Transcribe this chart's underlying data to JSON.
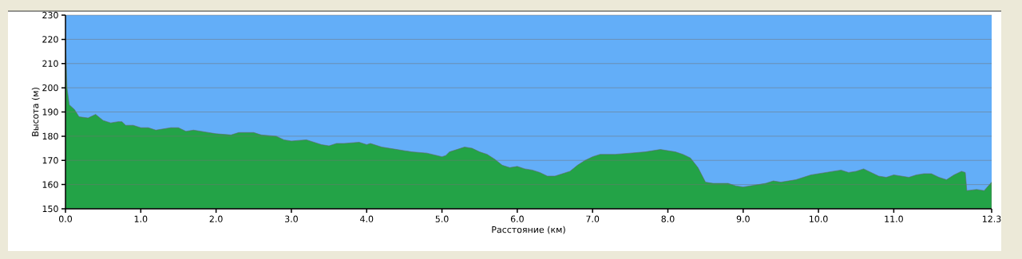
{
  "chart_data": {
    "type": "area",
    "xlabel": "Расстояние   (км)",
    "ylabel": "Высота (м)",
    "color": "#23a347",
    "grid": "y",
    "xlim": [
      0,
      12.3
    ],
    "ylim": [
      150,
      230
    ],
    "xticks": [
      {
        "value": 0,
        "label": "0.0"
      },
      {
        "value": 1,
        "label": "1.0"
      },
      {
        "value": 2,
        "label": "2.0"
      },
      {
        "value": 3,
        "label": "3.0"
      },
      {
        "value": 4,
        "label": "4.0"
      },
      {
        "value": 5,
        "label": "5.0"
      },
      {
        "value": 6,
        "label": "6.0"
      },
      {
        "value": 7,
        "label": "7.0"
      },
      {
        "value": 8,
        "label": "8.0"
      },
      {
        "value": 9,
        "label": "9.0"
      },
      {
        "value": 10,
        "label": "10.0"
      },
      {
        "value": 11,
        "label": "11.0"
      },
      12.3
    ],
    "yticks": [
      150,
      160,
      170,
      180,
      190,
      200,
      210,
      220,
      230
    ],
    "x": [
      0,
      0.02,
      0.05,
      0.12,
      0.18,
      0.3,
      0.4,
      0.5,
      0.6,
      0.7,
      0.75,
      0.8,
      0.9,
      1.0,
      1.1,
      1.2,
      1.4,
      1.5,
      1.6,
      1.7,
      1.8,
      2.0,
      2.2,
      2.3,
      2.5,
      2.6,
      2.8,
      2.9,
      3.0,
      3.2,
      3.3,
      3.4,
      3.5,
      3.6,
      3.7,
      3.9,
      4.0,
      4.05,
      4.2,
      4.4,
      4.6,
      4.8,
      5.0,
      5.05,
      5.1,
      5.3,
      5.4,
      5.5,
      5.6,
      5.7,
      5.8,
      5.9,
      6.0,
      6.1,
      6.2,
      6.3,
      6.4,
      6.5,
      6.6,
      6.7,
      6.8,
      6.9,
      7.0,
      7.1,
      7.2,
      7.3,
      7.5,
      7.7,
      7.8,
      7.9,
      8.0,
      8.1,
      8.2,
      8.3,
      8.4,
      8.5,
      8.6,
      8.8,
      8.9,
      9.0,
      9.2,
      9.3,
      9.4,
      9.5,
      9.6,
      9.7,
      9.8,
      9.9,
      10.0,
      10.2,
      10.3,
      10.4,
      10.5,
      10.6,
      10.7,
      10.8,
      10.9,
      11.0,
      11.1,
      11.2,
      11.3,
      11.4,
      11.5,
      11.6,
      11.7,
      11.8,
      11.9,
      11.95,
      11.97,
      12.1,
      12.2,
      12.3
    ],
    "values": [
      220,
      200,
      193,
      191,
      188,
      187.5,
      189,
      186.5,
      185.5,
      186,
      186,
      184.5,
      184.5,
      183.5,
      183.5,
      182.5,
      183.5,
      183.5,
      182,
      182.5,
      182,
      181,
      180.5,
      181.5,
      181.5,
      180.5,
      180,
      178.5,
      178,
      178.5,
      177.5,
      176.5,
      176,
      177,
      177,
      177.5,
      176.5,
      177,
      175.5,
      174.5,
      173.5,
      173,
      171.5,
      172,
      173.5,
      175.5,
      175,
      173.5,
      172.5,
      170.5,
      168,
      167,
      167.5,
      166.5,
      166,
      165,
      163.5,
      163.5,
      164.5,
      165.5,
      168,
      170,
      171.5,
      172.5,
      172.5,
      172.5,
      173,
      173.5,
      174,
      174.5,
      174,
      173.5,
      172.5,
      171,
      167,
      161,
      160.5,
      160.5,
      159.5,
      159,
      160,
      160.5,
      161.5,
      161,
      161.5,
      162,
      163,
      164,
      164.5,
      165.5,
      166,
      165,
      165.5,
      166.5,
      165,
      163.5,
      163,
      164,
      163.5,
      163,
      164,
      164.5,
      164.5,
      163,
      162,
      164,
      165.5,
      165,
      157.5,
      158,
      157.5,
      161
    ]
  }
}
